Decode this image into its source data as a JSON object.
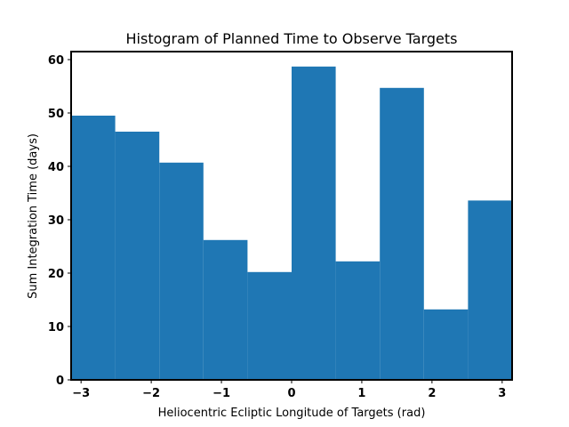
{
  "chart_data": {
    "type": "bar",
    "title": "Histogram of Planned Time to Observe Targets",
    "xlabel": "Heliocentric Ecliptic Longitude of Targets (rad)",
    "ylabel": "Sum Integration Time (days)",
    "xlim": [
      -3.1416,
      3.1416
    ],
    "ylim": [
      0,
      61.5
    ],
    "bin_edges": [
      -3.1416,
      -2.5133,
      -1.885,
      -1.2566,
      -0.6283,
      0.0,
      0.6283,
      1.2566,
      1.885,
      2.5133,
      3.1416
    ],
    "values": [
      49.5,
      46.5,
      40.7,
      26.2,
      20.2,
      58.7,
      22.2,
      54.7,
      13.2,
      33.6
    ],
    "bar_color": "#1f77b4",
    "xticks": [
      -3,
      -2,
      -1,
      0,
      1,
      2,
      3
    ],
    "xtick_labels": [
      "−3",
      "−2",
      "−1",
      "0",
      "1",
      "2",
      "3"
    ],
    "yticks": [
      0,
      10,
      20,
      30,
      40,
      50,
      60
    ],
    "ytick_labels": [
      "0",
      "10",
      "20",
      "30",
      "40",
      "50",
      "60"
    ],
    "grid": false,
    "legend": "none"
  }
}
